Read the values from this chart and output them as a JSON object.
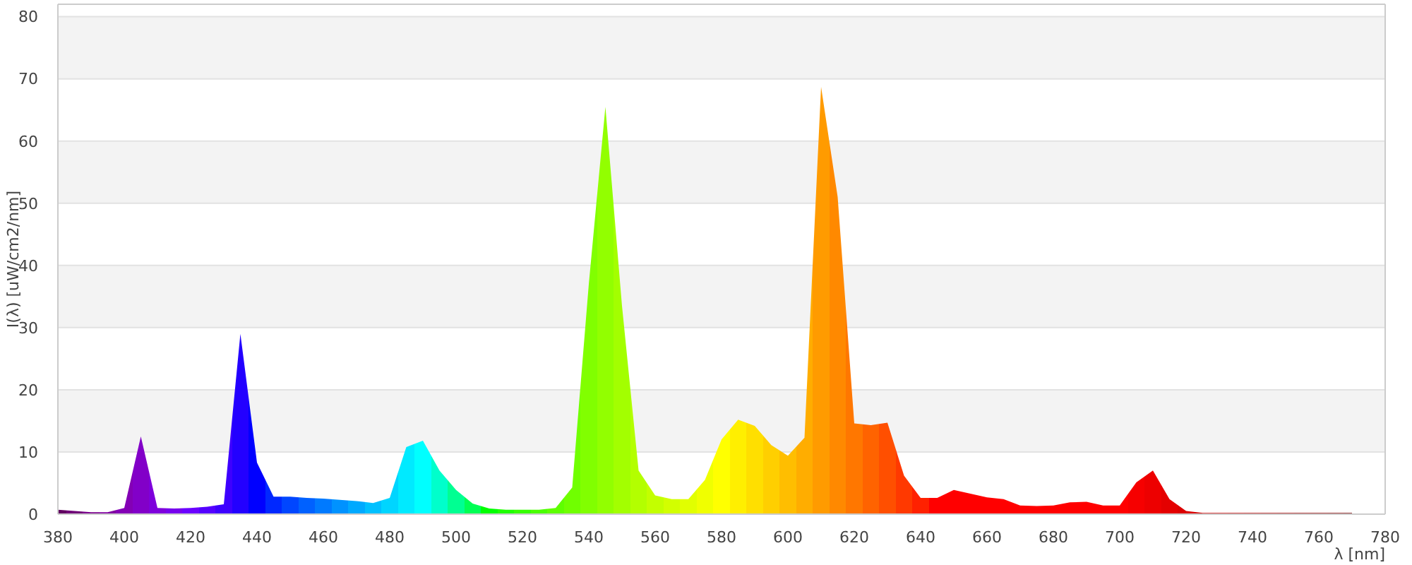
{
  "chart_data": {
    "type": "area",
    "xlabel": "λ [nm]",
    "ylabel": "I(λ) [uW/cm2/nm]",
    "x": [
      380,
      385,
      390,
      395,
      400,
      405,
      410,
      415,
      420,
      425,
      430,
      435,
      440,
      445,
      450,
      455,
      460,
      465,
      470,
      475,
      480,
      485,
      490,
      495,
      500,
      505,
      510,
      515,
      520,
      525,
      530,
      535,
      540,
      545,
      550,
      555,
      560,
      565,
      570,
      575,
      580,
      585,
      590,
      595,
      600,
      605,
      610,
      615,
      620,
      625,
      630,
      635,
      640,
      645,
      650,
      655,
      660,
      665,
      670,
      675,
      680,
      685,
      690,
      695,
      700,
      705,
      710,
      715,
      720,
      725,
      730,
      735,
      740,
      745,
      750,
      755,
      760,
      765,
      770
    ],
    "values": [
      0.7,
      0.5,
      0.3,
      0.3,
      1.0,
      12.5,
      1.0,
      0.9,
      1.0,
      1.2,
      1.6,
      29,
      8.3,
      2.8,
      2.8,
      2.6,
      2.5,
      2.3,
      2.1,
      1.8,
      2.6,
      10.8,
      11.8,
      7.0,
      3.9,
      1.7,
      0.9,
      0.7,
      0.7,
      0.7,
      1.0,
      4.3,
      37,
      65.5,
      33.5,
      7.0,
      3.0,
      2.4,
      2.4,
      5.5,
      12,
      15.2,
      14.2,
      11.1,
      9.4,
      12.3,
      68.7,
      51,
      14.6,
      14.3,
      14.7,
      6.2,
      2.6,
      2.6,
      3.9,
      3.3,
      2.7,
      2.4,
      1.4,
      1.3,
      1.4,
      1.9,
      2.0,
      1.4,
      1.4,
      5.1,
      7.0,
      2.4,
      0.5,
      0.2,
      0.2,
      0.2,
      0.2,
      0.2,
      0.2,
      0.2,
      0.2,
      0.2,
      0.2
    ],
    "colors": [
      "#610061",
      "#6f0077",
      "#7a008c",
      "#8000a1",
      "#8300b5",
      "#8200c8",
      "#7e00db",
      "#7600ed",
      "#6a00ff",
      "#5400ff",
      "#3d00ff",
      "#2300ff",
      "#0000ff",
      "#0028ff",
      "#0046ff",
      "#0061ff",
      "#007aff",
      "#0092ff",
      "#00a9ff",
      "#00c0ff",
      "#00d5ff",
      "#00eaff",
      "#00ffff",
      "#00ffcb",
      "#00ff92",
      "#00ff54",
      "#00ff00",
      "#1fff00",
      "#36ff00",
      "#4aff00",
      "#5eff00",
      "#70ff00",
      "#81ff00",
      "#92ff00",
      "#a3ff00",
      "#b3ff00",
      "#c3ff00",
      "#d2ff00",
      "#e1ff00",
      "#f0ff00",
      "#ffff00",
      "#ffef00",
      "#ffdf00",
      "#ffcf00",
      "#ffbe00",
      "#ffad00",
      "#ff9b00",
      "#ff8900",
      "#ff7700",
      "#ff6300",
      "#ff4f00",
      "#ff3900",
      "#ff2100",
      "#ff0000",
      "#ff0000",
      "#ff0000",
      "#ff0000",
      "#ff0000",
      "#ff0000",
      "#ff0000",
      "#ff0000",
      "#ff0000",
      "#ff0000",
      "#ff0000",
      "#ff0000",
      "#f60000",
      "#ed0000",
      "#e40000",
      "#db0000",
      "#d10000",
      "#c80000",
      "#be0000",
      "#b50000",
      "#ab0000",
      "#a10000",
      "#970000",
      "#8c0000",
      "#820000",
      "#770000"
    ],
    "xlim": [
      380,
      780
    ],
    "xticks": [
      380,
      400,
      420,
      440,
      460,
      480,
      500,
      520,
      540,
      560,
      580,
      600,
      620,
      640,
      660,
      680,
      700,
      720,
      740,
      760,
      780
    ],
    "ylim": [
      0,
      82
    ],
    "yticks": [
      0,
      10,
      20,
      30,
      40,
      50,
      60,
      70,
      80
    ],
    "grid": "y"
  }
}
